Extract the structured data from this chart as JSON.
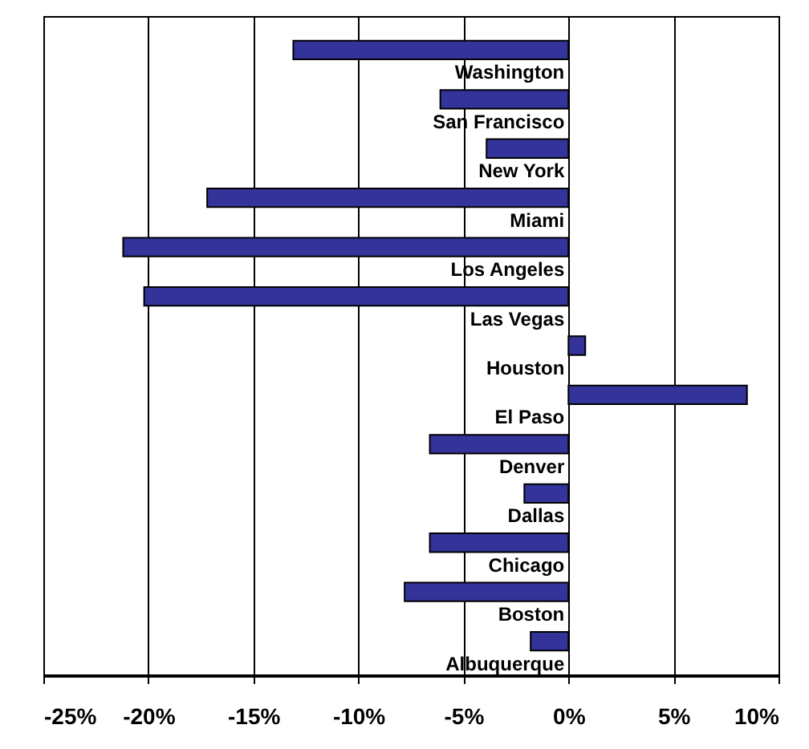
{
  "chart_data": {
    "type": "bar",
    "orientation": "horizontal",
    "categories": [
      "Washington",
      "San Francisco",
      "New York",
      "Miami",
      "Los Angeles",
      "Las Vegas",
      "Houston",
      "El Paso",
      "Denver",
      "Dallas",
      "Chicago",
      "Boston",
      "Albuquerque"
    ],
    "values": [
      -13.1,
      -6.1,
      -3.9,
      -17.2,
      -21.2,
      -20.2,
      0.8,
      8.5,
      -6.6,
      -2.1,
      -6.6,
      -7.8,
      -1.8
    ],
    "color": "#333399",
    "xlim": [
      -25,
      10
    ],
    "xticks": [
      {
        "value": -25,
        "label": "-25%"
      },
      {
        "value": -20,
        "label": "-20%"
      },
      {
        "value": -15,
        "label": "-15%"
      },
      {
        "value": -10,
        "label": "-10%"
      },
      {
        "value": -5,
        "label": "-5%"
      },
      {
        "value": 0,
        "label": "0%"
      },
      {
        "value": 5,
        "label": "5%"
      },
      {
        "value": 10,
        "label": "10%"
      }
    ],
    "grid": "x"
  }
}
